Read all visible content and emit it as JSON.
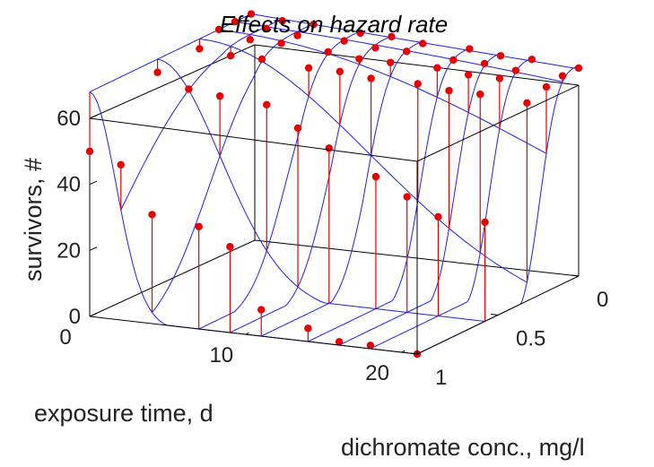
{
  "chart_data": {
    "type": "surface3d",
    "title": "Effects on hazard rate",
    "xlabel": "exposure time, d",
    "ylabel": "dichromate conc., mg/l",
    "zlabel": "survivors, #",
    "x_ticks": [
      "0",
      "10",
      "20"
    ],
    "y_ticks": [
      "0",
      "0.5",
      "1"
    ],
    "z_ticks": [
      "0",
      "20",
      "40",
      "60"
    ],
    "xlim": [
      0,
      21
    ],
    "ylim": [
      0,
      1
    ],
    "zlim": [
      0,
      60
    ],
    "x_days": [
      0,
      2,
      4,
      7,
      9,
      11,
      14,
      16,
      18,
      21
    ],
    "concentrations": [
      0,
      0.1,
      0.2,
      0.32,
      0.58,
      1.0
    ],
    "series": [
      {
        "concentration": 0,
        "observed": [
          68,
          67,
          67,
          66,
          66,
          65,
          65,
          64,
          64,
          63
        ]
      },
      {
        "concentration": 0.1,
        "observed": [
          68,
          67,
          66,
          66,
          65,
          65,
          64,
          64,
          63,
          63
        ]
      },
      {
        "concentration": 0.2,
        "observed": [
          68,
          66,
          66,
          65,
          64,
          64,
          64,
          63,
          63,
          62
        ]
      },
      {
        "concentration": 0.32,
        "observed": [
          65,
          64,
          64,
          63,
          63,
          62,
          62,
          61,
          61,
          60
        ]
      },
      {
        "concentration": 0.58,
        "observed": [
          64,
          60,
          59,
          58,
          52,
          47,
          40,
          35,
          30,
          30
        ]
      },
      {
        "concentration": 1.0,
        "observed": [
          50,
          47,
          33,
          31,
          26,
          8,
          4,
          1,
          1,
          0
        ]
      }
    ],
    "grid": false,
    "legend": "none",
    "colors": {
      "surface": "#1f1fe6",
      "observed": "#e80000",
      "box": "#000000"
    }
  }
}
